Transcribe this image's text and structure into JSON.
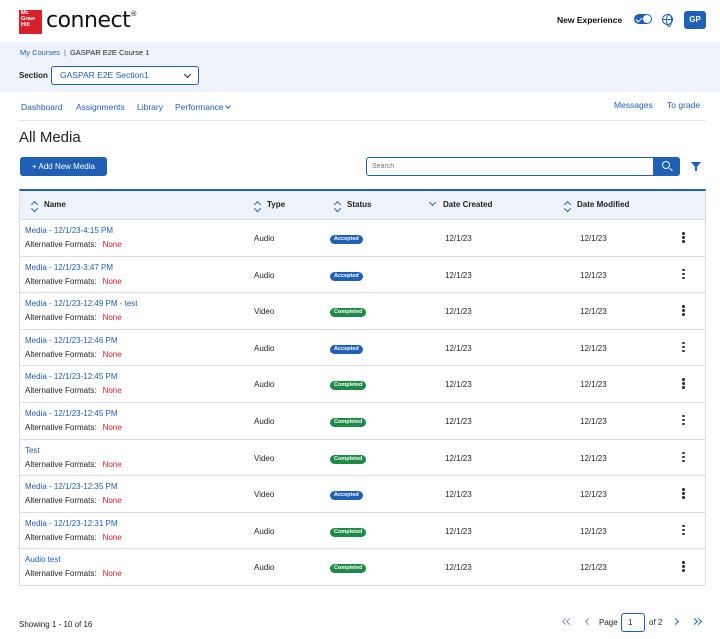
{
  "header": {
    "logo_text": "Mc Graw Hill",
    "brand": "connect",
    "new_experience": "New Experience",
    "avatar": "GP"
  },
  "breadcrumb": {
    "root": "My Courses",
    "course": "GASPAR E2E Course 1"
  },
  "section": {
    "label": "Section",
    "value": "GASPAR E2E Section1"
  },
  "nav": {
    "dashboard": "Dashboard",
    "assignments": "Assignments",
    "library": "Library",
    "performance": "Performance",
    "messages": "Messages",
    "to_grade": "To grade"
  },
  "page": {
    "title": "All Media",
    "add_button": "+ Add New Media",
    "search_placeholder": "Search"
  },
  "table": {
    "columns": {
      "name": "Name",
      "type": "Type",
      "status": "Status",
      "date_created": "Date Created",
      "date_modified": "Date Modified"
    },
    "alt_label": "Alternative Formats:",
    "rows": [
      {
        "name": "Media - 12/1/23-4:15 PM",
        "alt": "None",
        "type": "Audio",
        "status": "Accepted",
        "created": "12/1/23",
        "modified": "12/1/23"
      },
      {
        "name": "Media - 12/1/23-3:47 PM",
        "alt": "None",
        "type": "Audio",
        "status": "Accepted",
        "created": "12/1/23",
        "modified": "12/1/23"
      },
      {
        "name": "Media - 12/1/23-12:49 PM - test",
        "alt": "None",
        "type": "Video",
        "status": "Completed",
        "created": "12/1/23",
        "modified": "12/1/23"
      },
      {
        "name": "Media - 12/1/23-12:46 PM",
        "alt": "None",
        "type": "Audio",
        "status": "Accepted",
        "created": "12/1/23",
        "modified": "12/1/23"
      },
      {
        "name": "Media - 12/1/23-12:45 PM",
        "alt": "None",
        "type": "Audio",
        "status": "Completed",
        "created": "12/1/23",
        "modified": "12/1/23"
      },
      {
        "name": "Media - 12/1/23-12:45 PM",
        "alt": "None",
        "type": "Audio",
        "status": "Completed",
        "created": "12/1/23",
        "modified": "12/1/23"
      },
      {
        "name": "Test",
        "alt": "None",
        "type": "Video",
        "status": "Completed",
        "created": "12/1/23",
        "modified": "12/1/23"
      },
      {
        "name": "Media - 12/1/23-12:35 PM",
        "alt": "None",
        "type": "Video",
        "status": "Accepted",
        "created": "12/1/23",
        "modified": "12/1/23"
      },
      {
        "name": "Media - 12/1/23-12:31 PM",
        "alt": "None",
        "type": "Audio",
        "status": "Completed",
        "created": "12/1/23",
        "modified": "12/1/23"
      },
      {
        "name": "Audio test",
        "alt": "None",
        "type": "Audio",
        "status": "Completed",
        "created": "12/1/23",
        "modified": "12/1/23"
      }
    ]
  },
  "status_colors": {
    "Accepted": "#1f5fb5",
    "Completed": "#1e8a47"
  },
  "footer": {
    "showing": "Showing 1 - 10 of 16",
    "page_label": "Page",
    "page_value": "1",
    "of_label": "of 2"
  },
  "colors": {
    "accent": "#1f5fb5",
    "brand_red": "#d6202b"
  }
}
